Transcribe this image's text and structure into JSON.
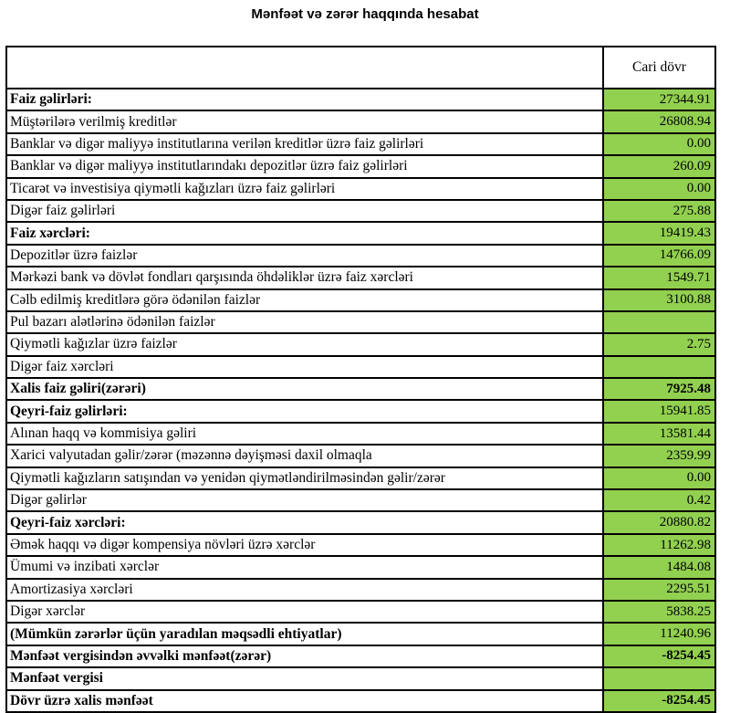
{
  "title": "Mənfəət və zərər haqqında hesabat",
  "table": {
    "value_column_header": "Cari dövr",
    "colors": {
      "value_cell_background": "#92d050",
      "border": "#000000"
    },
    "rows": [
      {
        "label": "Faiz gəlirləri:",
        "value": "27344.91",
        "label_bold": true,
        "value_bold": false
      },
      {
        "label": "Müştərilərə verilmiş kreditlər",
        "value": "26808.94",
        "label_bold": false,
        "value_bold": false
      },
      {
        "label": "Banklar və digər maliyyə institutlarına verilən kreditlər üzrə faiz gəlirləri",
        "value": "0.00",
        "label_bold": false,
        "value_bold": false
      },
      {
        "label": "Banklar və digər maliyyə institutlarındakı depozitlər üzrə faiz gəlirləri",
        "value": "260.09",
        "label_bold": false,
        "value_bold": false
      },
      {
        "label": "Ticarət və investisiya qiymətli kağızları üzrə faiz gəlirləri",
        "value": "0.00",
        "label_bold": false,
        "value_bold": false
      },
      {
        "label": "Digər faiz gəlirləri",
        "value": "275.88",
        "label_bold": false,
        "value_bold": false
      },
      {
        "label": "Faiz xərcləri:",
        "value": "19419.43",
        "label_bold": true,
        "value_bold": false
      },
      {
        "label": "Depozitlər üzrə faizlər",
        "value": "14766.09",
        "label_bold": false,
        "value_bold": false
      },
      {
        "label": "Mərkəzi bank və dövlət fondları qarşısında öhdəliklər üzrə faiz xərcləri",
        "value": "1549.71",
        "label_bold": false,
        "value_bold": false
      },
      {
        "label": "Cəlb edilmiş kreditlərə görə ödənilən faizlər",
        "value": "3100.88",
        "label_bold": false,
        "value_bold": false
      },
      {
        "label": "Pul bazarı alətlərinə ödənilən faizlər",
        "value": "",
        "label_bold": false,
        "value_bold": false
      },
      {
        "label": "Qiymətli kağızlar üzrə faizlər",
        "value": "2.75",
        "label_bold": false,
        "value_bold": false
      },
      {
        "label": "Digər faiz xərcləri",
        "value": "",
        "label_bold": false,
        "value_bold": false
      },
      {
        "label": "Xalis faiz gəliri(zərəri)",
        "value": "7925.48",
        "label_bold": true,
        "value_bold": true
      },
      {
        "label": "Qeyri-faiz gəlirləri:",
        "value": "15941.85",
        "label_bold": true,
        "value_bold": false
      },
      {
        "label": "Alınan haqq və kommisiya gəliri",
        "value": "13581.44",
        "label_bold": false,
        "value_bold": false
      },
      {
        "label": "Xarici valyutadan gəlir/zərər (məzənnə dəyişməsi daxil olmaqla",
        "value": "2359.99",
        "label_bold": false,
        "value_bold": false
      },
      {
        "label": "Qiymətli kağızların satışından və yenidən qiymətləndirilməsindən gəlir/zərər",
        "value": "0.00",
        "label_bold": false,
        "value_bold": false
      },
      {
        "label": "Digər gəlirlər",
        "value": "0.42",
        "label_bold": false,
        "value_bold": false
      },
      {
        "label": "Qeyri-faiz xərcləri:",
        "value": "20880.82",
        "label_bold": true,
        "value_bold": false
      },
      {
        "label": "Əmək haqqı və digər kompensiya növləri üzrə xərclər",
        "value": "11262.98",
        "label_bold": false,
        "value_bold": false
      },
      {
        "label": "Ümumi və inzibati xərclər",
        "value": "1484.08",
        "label_bold": false,
        "value_bold": false
      },
      {
        "label": "Amortizasiya xərcləri",
        "value": "2295.51",
        "label_bold": false,
        "value_bold": false
      },
      {
        "label": "Digər xərclər",
        "value": "5838.25",
        "label_bold": false,
        "value_bold": false
      },
      {
        "label": "(Mümkün zərərlər üçün yaradılan məqsədli ehtiyatlar)",
        "value": "11240.96",
        "label_bold": true,
        "value_bold": false
      },
      {
        "label": "Mənfəət vergisindən əvvəlki mənfəət(zərər)",
        "value": "-8254.45",
        "label_bold": true,
        "value_bold": true
      },
      {
        "label": "Mənfəət vergisi",
        "value": "",
        "label_bold": true,
        "value_bold": false
      },
      {
        "label": "Dövr üzrə xalis mənfəət",
        "value": "-8254.45",
        "label_bold": true,
        "value_bold": true
      }
    ]
  }
}
